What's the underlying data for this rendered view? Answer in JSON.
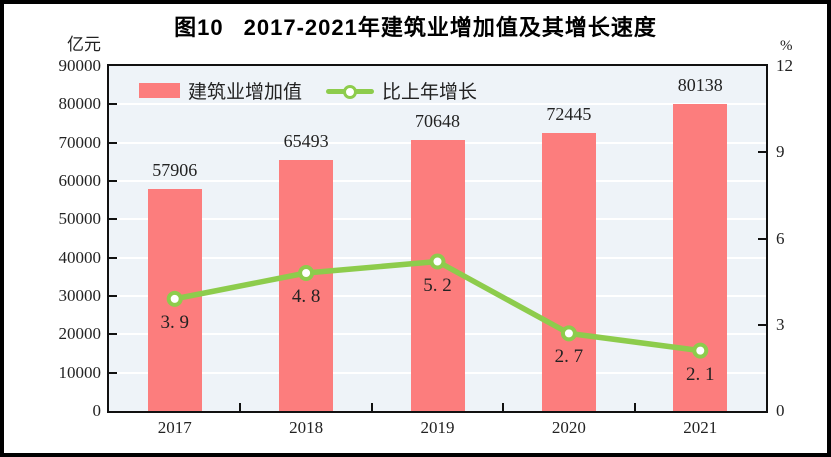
{
  "figure": {
    "number": "图10",
    "title": "2017-2021年建筑业增加值及其增长速度",
    "left_axis_unit": "亿元",
    "right_axis_unit": "%"
  },
  "legend": [
    {
      "label": "建筑业增加值",
      "type": "bar",
      "color": "#fc7d7d"
    },
    {
      "label": "比上年增长",
      "type": "line",
      "color": "#8dcc4c"
    }
  ],
  "colors": {
    "bar": "#fc7d7d",
    "line": "#8dcc4c",
    "marker_fill": "#ffffff",
    "plot_background": "#eef3f8",
    "gridline": "#ffffff",
    "axis": "#111111",
    "text": "#222222"
  },
  "chart_data": {
    "type": "bar+line",
    "title": "图10 2017-2021年建筑业增加值及其增长速度",
    "categories": [
      "2017",
      "2018",
      "2019",
      "2020",
      "2021"
    ],
    "series": [
      {
        "name": "建筑业增加值",
        "type": "bar",
        "axis": "left",
        "unit": "亿元",
        "values": [
          57906,
          65493,
          70648,
          72445,
          80138
        ],
        "labels": [
          "57906",
          "65493",
          "70648",
          "72445",
          "80138"
        ],
        "color": "#fc7d7d"
      },
      {
        "name": "比上年增长",
        "type": "line",
        "axis": "right",
        "unit": "%",
        "values": [
          3.9,
          4.8,
          5.2,
          2.7,
          2.1
        ],
        "labels": [
          "3. 9",
          "4. 8",
          "5. 2",
          "2. 7",
          "2. 1"
        ],
        "color": "#8dcc4c",
        "marker": "circle-white-fill"
      }
    ],
    "left_axis": {
      "label": "亿元",
      "min": 0,
      "max": 90000,
      "step": 10000,
      "ticks": [
        "0",
        "10000",
        "20000",
        "30000",
        "40000",
        "50000",
        "60000",
        "70000",
        "80000",
        "90000"
      ]
    },
    "right_axis": {
      "label": "%",
      "min": 0,
      "max": 12,
      "step": 3,
      "ticks": [
        "0",
        "3",
        "6",
        "9",
        "12"
      ]
    },
    "grid": "horizontal",
    "legend_position": "top-left-inside"
  }
}
